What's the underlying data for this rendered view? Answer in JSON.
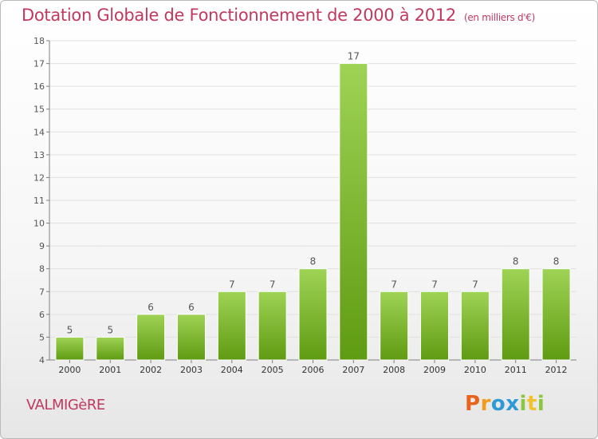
{
  "title": "Dotation Globale de Fonctionnement de 2000 à 2012",
  "subtitle": "(en milliers d'€)",
  "commune": "VALMIGèRE",
  "brand": {
    "letters": [
      "P",
      "r",
      "o",
      "x",
      "i",
      "t",
      "i"
    ],
    "colors": [
      "#e8631c",
      "#f39c1c",
      "#2e9bd6",
      "#2e9bd6",
      "#8cc63f",
      "#f2c12e",
      "#8cc63f"
    ]
  },
  "colors": {
    "title": "#c0395f",
    "bar_top": "#9fd355",
    "bar_bottom": "#5f9b12",
    "axis": "#808080",
    "grid": "#e0e0e0"
  },
  "chart_data": {
    "type": "bar",
    "title": "Dotation Globale de Fonctionnement de 2000 à 2012",
    "subtitle": "(en milliers d'€)",
    "categories": [
      "2000",
      "2001",
      "2002",
      "2003",
      "2004",
      "2005",
      "2006",
      "2007",
      "2008",
      "2009",
      "2010",
      "2011",
      "2012"
    ],
    "values": [
      5,
      5,
      6,
      6,
      7,
      7,
      8,
      17,
      7,
      7,
      7,
      8,
      8
    ],
    "ylim": [
      4,
      18
    ],
    "yticks": [
      4,
      5,
      6,
      7,
      8,
      9,
      10,
      11,
      12,
      13,
      14,
      15,
      16,
      17,
      18
    ],
    "grid": true
  }
}
